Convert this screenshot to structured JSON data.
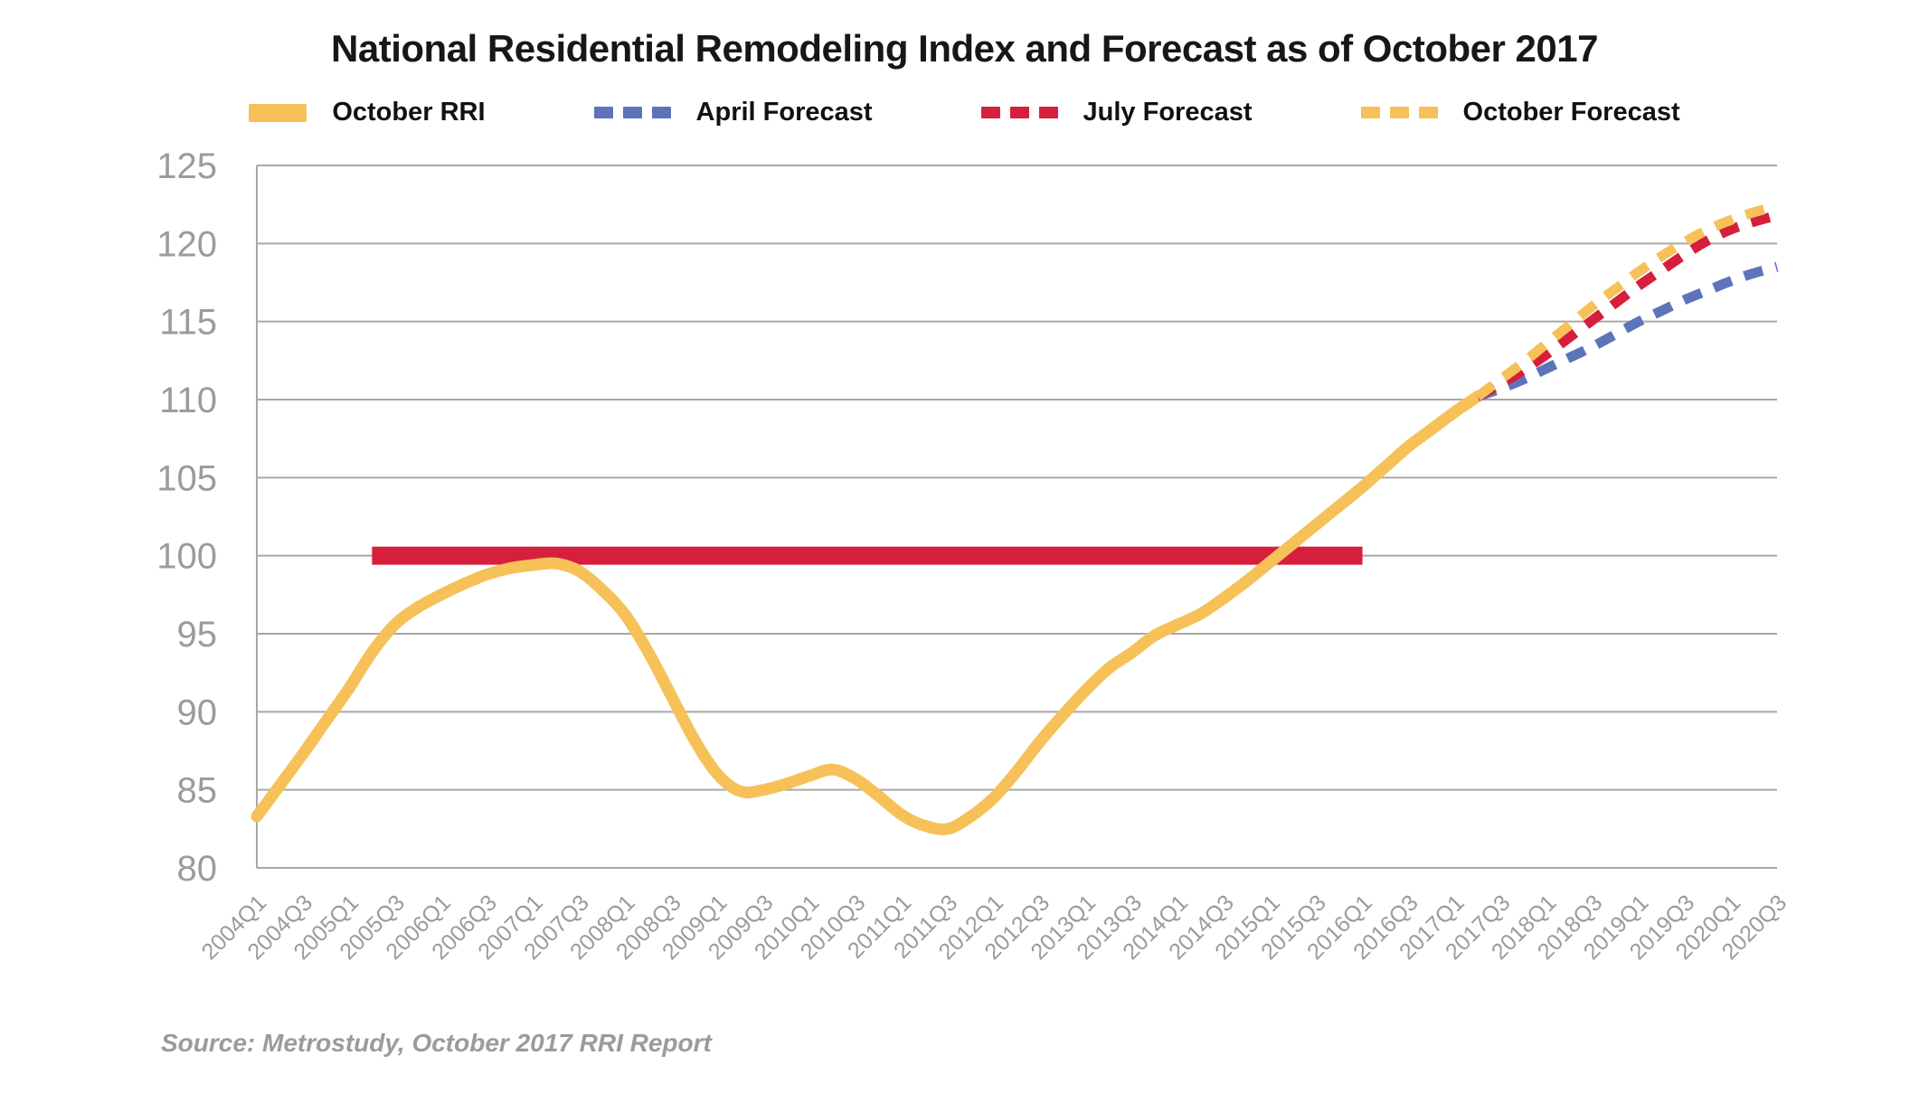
{
  "title": "National Residential Remodeling Index and Forecast as of October 2017",
  "source": "Source: Metrostudy, October 2017 RRI Report",
  "colors": {
    "rri_yellow": "#F6C158",
    "forecast_blue": "#5D74BA",
    "forecast_red": "#D51F3C",
    "benchmark_red": "#D51F3C",
    "gridline": "#A7A7A7",
    "axis_text": "#9b9b9b",
    "title_text": "#171717"
  },
  "legend": [
    {
      "label": "October RRI",
      "style": "solid",
      "color": "#F6C158"
    },
    {
      "label": "April Forecast",
      "style": "dashed",
      "color": "#5D74BA"
    },
    {
      "label": "July Forecast",
      "style": "dashed",
      "color": "#D51F3C"
    },
    {
      "label": "October Forecast",
      "style": "dashed",
      "color": "#F6C158"
    }
  ],
  "chart_data": {
    "type": "line",
    "title": "National Residential Remodeling Index and Forecast as of October 2017",
    "xlabel": "",
    "ylabel": "",
    "ylim": [
      80,
      125
    ],
    "grid": true,
    "legend_position": "top",
    "y_ticks": [
      125,
      120,
      115,
      110,
      105,
      100,
      95,
      90,
      85,
      80
    ],
    "x_tick_labels": [
      "2004Q1",
      "2004Q3",
      "2005Q1",
      "2005Q3",
      "2006Q1",
      "2006Q3",
      "2007Q1",
      "2007Q3",
      "2008Q1",
      "2008Q3",
      "2009Q1",
      "2009Q3",
      "2010Q1",
      "2010Q3",
      "2011Q1",
      "2011Q3",
      "2012Q1",
      "2012Q3",
      "2013Q1",
      "2013Q3",
      "2014Q1",
      "2014Q3",
      "2015Q1",
      "2015Q3",
      "2016Q1",
      "2016Q3",
      "2017Q1",
      "2017Q3",
      "2018Q1",
      "2018Q3",
      "2019Q1",
      "2019Q3",
      "2020Q1",
      "2020Q3"
    ],
    "x_domain": {
      "start": "2004Q1",
      "end": "2020Q3",
      "interval": "quarter"
    },
    "benchmark_bar": {
      "value": 100,
      "from": "2005Q2",
      "to": "2016Q1",
      "color": "#D51F3C"
    },
    "series": [
      {
        "name": "October RRI",
        "style": "solid",
        "color": "#F6C158",
        "width": 13,
        "start": "2004Q1",
        "values": [
          83.3,
          85.3,
          87.3,
          89.4,
          91.5,
          93.8,
          95.6,
          96.7,
          97.5,
          98.2,
          98.8,
          99.2,
          99.4,
          99.5,
          99.0,
          97.8,
          96.2,
          93.8,
          91.0,
          88.2,
          86.0,
          84.9,
          85.0,
          85.4,
          85.9,
          86.3,
          85.7,
          84.6,
          83.4,
          82.7,
          82.5,
          83.3,
          84.5,
          86.2,
          88.1,
          89.8,
          91.4,
          92.8,
          93.8,
          94.9,
          95.6,
          96.3,
          97.3,
          98.4,
          99.6,
          100.8,
          102.0,
          103.2,
          104.4,
          105.7,
          107.0,
          108.1,
          109.2,
          110.2
        ]
      },
      {
        "name": "April Forecast",
        "style": "dashed",
        "color": "#5D74BA",
        "width": 11,
        "start": "2017Q2",
        "values": [
          110.2,
          110.7,
          111.3,
          112.0,
          112.7,
          113.4,
          114.2,
          115.0,
          115.7,
          116.4,
          117.0,
          117.6,
          118.1,
          118.5
        ]
      },
      {
        "name": "July Forecast",
        "style": "dashed",
        "color": "#D51F3C",
        "width": 11,
        "start": "2017Q2",
        "values": [
          110.2,
          111.0,
          111.9,
          112.9,
          114.0,
          115.1,
          116.2,
          117.3,
          118.3,
          119.3,
          120.2,
          120.9,
          121.4,
          121.8
        ]
      },
      {
        "name": "October Forecast",
        "style": "dashed",
        "color": "#F6C158",
        "width": 11,
        "start": "2017Q2",
        "values": [
          110.2,
          111.3,
          112.4,
          113.6,
          114.8,
          116.0,
          117.1,
          118.2,
          119.2,
          120.1,
          120.9,
          121.5,
          122.0,
          122.4
        ]
      }
    ]
  }
}
